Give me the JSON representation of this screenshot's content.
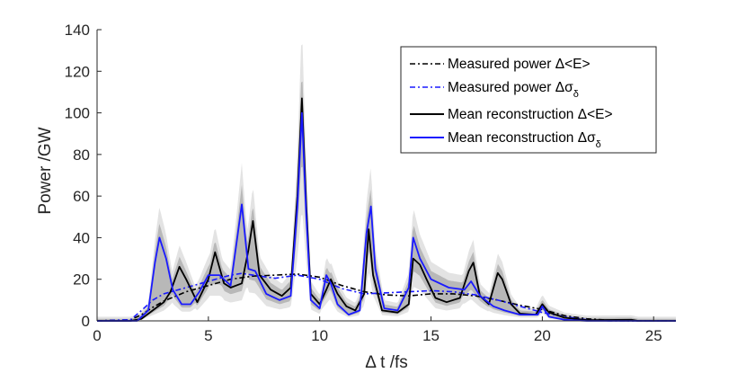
{
  "chart_data": {
    "type": "line",
    "xlabel": "Δ t /fs",
    "ylabel": "Power /GW",
    "xlim": [
      0,
      26
    ],
    "ylim": [
      0,
      140
    ],
    "xticks": [
      0,
      5,
      10,
      15,
      20,
      25
    ],
    "yticks": [
      0,
      20,
      40,
      60,
      80,
      100,
      120,
      140
    ],
    "grid": false,
    "legend_position": "top-right",
    "legend": [
      {
        "key": "measured_E",
        "text": "Measured power Δ<E>"
      },
      {
        "key": "measured_sigma",
        "text": "Measured power Δσ",
        "subscript": "δ"
      },
      {
        "key": "recon_E",
        "text": "Mean reconstruction Δ<E>"
      },
      {
        "key": "recon_sigma",
        "text": "Mean reconstruction Δσ",
        "subscript": "δ"
      }
    ],
    "series": [
      {
        "key": "measured_E",
        "name": "Measured power Δ<E>",
        "color": "#000000",
        "style": "dashdot",
        "points": [
          [
            0,
            0
          ],
          [
            1.5,
            0.5
          ],
          [
            2,
            3
          ],
          [
            2.5,
            6.5
          ],
          [
            3,
            9.5
          ],
          [
            4,
            14
          ],
          [
            5,
            17
          ],
          [
            6,
            20
          ],
          [
            7,
            21.5
          ],
          [
            8,
            22
          ],
          [
            9,
            22.5
          ],
          [
            10,
            21
          ],
          [
            11,
            17
          ],
          [
            12,
            14
          ],
          [
            13,
            12.5
          ],
          [
            14,
            12
          ],
          [
            15,
            13
          ],
          [
            16,
            13
          ],
          [
            17,
            12
          ],
          [
            18,
            10
          ],
          [
            19,
            7.5
          ],
          [
            20,
            5.5
          ],
          [
            21,
            2.5
          ],
          [
            22,
            1
          ],
          [
            23,
            0.3
          ],
          [
            24,
            0
          ],
          [
            26,
            0
          ]
        ]
      },
      {
        "key": "measured_sigma",
        "name": "Measured power Δσδ",
        "color": "#1a1aff",
        "style": "dashdot",
        "points": [
          [
            0,
            0
          ],
          [
            1.5,
            0.5
          ],
          [
            2,
            5
          ],
          [
            2.5,
            10
          ],
          [
            3,
            13
          ],
          [
            4,
            16
          ],
          [
            5,
            19
          ],
          [
            6,
            22
          ],
          [
            6.5,
            22.8
          ],
          [
            7,
            22
          ],
          [
            8,
            20.5
          ],
          [
            9,
            22
          ],
          [
            10,
            20
          ],
          [
            11,
            15.5
          ],
          [
            12,
            13
          ],
          [
            13,
            13.5
          ],
          [
            14,
            14
          ],
          [
            15,
            14.5
          ],
          [
            16,
            14
          ],
          [
            17,
            12.5
          ],
          [
            18,
            10
          ],
          [
            19,
            7
          ],
          [
            20,
            4
          ],
          [
            21,
            2
          ],
          [
            22,
            0.5
          ],
          [
            23,
            0
          ],
          [
            26,
            0
          ]
        ]
      },
      {
        "key": "recon_E",
        "name": "Mean reconstruction Δ<E>",
        "color": "#000000",
        "style": "solid",
        "points": [
          [
            0,
            0
          ],
          [
            1.5,
            0
          ],
          [
            2,
            1
          ],
          [
            2.5,
            5
          ],
          [
            3,
            9
          ],
          [
            3.3,
            14
          ],
          [
            3.7,
            26
          ],
          [
            4,
            20
          ],
          [
            4.5,
            9
          ],
          [
            5,
            20
          ],
          [
            5.3,
            33
          ],
          [
            5.7,
            18
          ],
          [
            6,
            16
          ],
          [
            6.5,
            18
          ],
          [
            6.8,
            34
          ],
          [
            7,
            48
          ],
          [
            7.3,
            22
          ],
          [
            7.8,
            15
          ],
          [
            8.3,
            12
          ],
          [
            8.7,
            16
          ],
          [
            9,
            60
          ],
          [
            9.2,
            107
          ],
          [
            9.4,
            55
          ],
          [
            9.6,
            13
          ],
          [
            10,
            8
          ],
          [
            10.3,
            15
          ],
          [
            10.5,
            20
          ],
          [
            10.8,
            13
          ],
          [
            11.2,
            7
          ],
          [
            11.6,
            5
          ],
          [
            12,
            13
          ],
          [
            12.2,
            44
          ],
          [
            12.4,
            22
          ],
          [
            12.8,
            5
          ],
          [
            13.5,
            4
          ],
          [
            14,
            8
          ],
          [
            14.2,
            30
          ],
          [
            14.5,
            27
          ],
          [
            14.8,
            20
          ],
          [
            15.2,
            11
          ],
          [
            15.7,
            9
          ],
          [
            16.3,
            11
          ],
          [
            16.7,
            24
          ],
          [
            16.9,
            28
          ],
          [
            17.2,
            12
          ],
          [
            17.6,
            8
          ],
          [
            18,
            23
          ],
          [
            18.2,
            20
          ],
          [
            18.6,
            8
          ],
          [
            19,
            3.5
          ],
          [
            19.7,
            3
          ],
          [
            20,
            8
          ],
          [
            20.3,
            4
          ],
          [
            21,
            1.5
          ],
          [
            22,
            0.4
          ],
          [
            24,
            0.5
          ],
          [
            24.3,
            0
          ],
          [
            26,
            0
          ]
        ]
      },
      {
        "key": "recon_sigma",
        "name": "Mean reconstruction Δσδ",
        "color": "#1a1aff",
        "style": "solid",
        "points": [
          [
            0,
            0
          ],
          [
            1.8,
            0
          ],
          [
            2.3,
            5
          ],
          [
            2.6,
            28
          ],
          [
            2.8,
            40
          ],
          [
            3.1,
            30
          ],
          [
            3.4,
            15
          ],
          [
            3.8,
            8
          ],
          [
            4.2,
            8
          ],
          [
            4.6,
            14
          ],
          [
            5,
            22
          ],
          [
            5.5,
            22
          ],
          [
            6,
            17
          ],
          [
            6.3,
            40
          ],
          [
            6.5,
            56
          ],
          [
            6.8,
            25
          ],
          [
            7.1,
            24
          ],
          [
            7.6,
            13
          ],
          [
            8.2,
            10
          ],
          [
            8.7,
            12
          ],
          [
            9,
            55
          ],
          [
            9.2,
            100
          ],
          [
            9.4,
            50
          ],
          [
            9.6,
            10
          ],
          [
            10,
            6
          ],
          [
            10.3,
            22
          ],
          [
            10.5,
            18
          ],
          [
            10.8,
            8
          ],
          [
            11.3,
            3
          ],
          [
            11.8,
            5
          ],
          [
            12.1,
            42
          ],
          [
            12.3,
            55
          ],
          [
            12.5,
            25
          ],
          [
            12.9,
            6
          ],
          [
            13.5,
            5
          ],
          [
            14,
            16
          ],
          [
            14.2,
            40
          ],
          [
            14.5,
            30
          ],
          [
            15,
            20
          ],
          [
            15.8,
            16
          ],
          [
            16.5,
            15
          ],
          [
            16.8,
            19
          ],
          [
            17.2,
            12
          ],
          [
            17.8,
            7
          ],
          [
            18.3,
            5
          ],
          [
            19,
            3
          ],
          [
            19.8,
            3
          ],
          [
            20,
            7
          ],
          [
            20.3,
            2
          ],
          [
            21,
            0.5
          ],
          [
            22,
            0
          ],
          [
            26,
            0
          ]
        ]
      }
    ]
  }
}
